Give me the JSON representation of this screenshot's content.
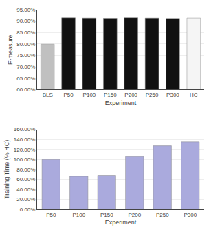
{
  "chart_data": [
    {
      "type": "bar",
      "categories": [
        "BLS",
        "P50",
        "P100",
        "P150",
        "P200",
        "P250",
        "P300",
        "HC"
      ],
      "values": [
        0.799,
        0.9145,
        0.9135,
        0.9125,
        0.915,
        0.9135,
        0.9115,
        0.9135
      ],
      "colors": [
        "#c0c0c0",
        "#111111",
        "#111111",
        "#111111",
        "#111111",
        "#111111",
        "#111111",
        "#f5f5f5"
      ],
      "ylim": [
        0.6,
        0.95
      ],
      "yticks": [
        {
          "value": 0.6,
          "label": "60.00%"
        },
        {
          "value": 0.65,
          "label": "65.00%"
        },
        {
          "value": 0.7,
          "label": "70.00%"
        },
        {
          "value": 0.75,
          "label": "75.00%"
        },
        {
          "value": 0.8,
          "label": "80.00%"
        },
        {
          "value": 0.85,
          "label": "85.00%"
        },
        {
          "value": 0.9,
          "label": "90.00%"
        },
        {
          "value": 0.95,
          "label": "95.00%"
        }
      ],
      "ylabel": "F-measure",
      "xlabel": "Experiment",
      "grid": true
    },
    {
      "type": "bar",
      "categories": [
        "P50",
        "P100",
        "P150",
        "P200",
        "P250",
        "P300"
      ],
      "values": [
        1.0,
        0.66,
        0.68,
        1.055,
        1.27,
        1.35
      ],
      "color": "#aaaadd",
      "ylim": [
        0.0,
        1.6
      ],
      "yticks": [
        {
          "value": 0.0,
          "label": "0.00%"
        },
        {
          "value": 0.2,
          "label": "20.00%"
        },
        {
          "value": 0.4,
          "label": "40.00%"
        },
        {
          "value": 0.6,
          "label": "60.00%"
        },
        {
          "value": 0.8,
          "label": "80.00%"
        },
        {
          "value": 1.0,
          "label": "100.00%"
        },
        {
          "value": 1.2,
          "label": "120.00%"
        },
        {
          "value": 1.4,
          "label": "140.00%"
        },
        {
          "value": 1.6,
          "label": "160.00%"
        }
      ],
      "ylabel": "Training Time (% HC)",
      "xlabel": "Experiment",
      "grid": true
    }
  ]
}
